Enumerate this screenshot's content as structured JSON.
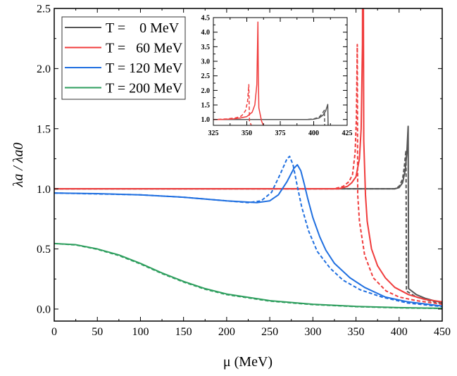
{
  "chart_data": {
    "type": "line",
    "xlabel": "μ (MeV)",
    "ylabel": "λa / λa0",
    "xlim": [
      0,
      450
    ],
    "ylim": [
      -0.1,
      2.5
    ],
    "xticks": [
      "0",
      "50",
      "100",
      "150",
      "200",
      "250",
      "300",
      "350",
      "400",
      "450"
    ],
    "yticks": [
      "0.0",
      "0.5",
      "1.0",
      "1.5",
      "2.0",
      "2.5"
    ],
    "legend": {
      "placement": "top-left",
      "entries": [
        "T =    0 MeV",
        "T =   60 MeV",
        "T = 120 MeV",
        "T = 200 MeV"
      ]
    },
    "series": [
      {
        "name": "T = 0 MeV",
        "color": "#555555",
        "style": "solid",
        "points": [
          [
            0,
            1
          ],
          [
            395,
            1
          ],
          [
            400,
            1.01
          ],
          [
            404,
            1.05
          ],
          [
            407,
            1.15
          ],
          [
            409,
            1.3
          ],
          [
            410.5,
            1.52
          ],
          [
            411,
            0.17
          ],
          [
            420,
            0.12
          ],
          [
            430,
            0.09
          ],
          [
            440,
            0.07
          ],
          [
            450,
            0.055
          ]
        ]
      },
      {
        "name": "T = 0 MeV",
        "color": "#555555",
        "style": "dashed",
        "points": [
          [
            0,
            1
          ],
          [
            395,
            1
          ],
          [
            400,
            1.02
          ],
          [
            404,
            1.08
          ],
          [
            406,
            1.18
          ],
          [
            408,
            1.32
          ],
          [
            408.5,
            0.15
          ],
          [
            420,
            0.1
          ],
          [
            435,
            0.07
          ],
          [
            450,
            0.045
          ]
        ]
      },
      {
        "name": "T = 60 MeV",
        "color": "#f03c3c",
        "style": "solid",
        "points": [
          [
            0,
            1
          ],
          [
            330,
            1
          ],
          [
            340,
            1.02
          ],
          [
            345,
            1.05
          ],
          [
            350,
            1.1
          ],
          [
            354,
            1.25
          ],
          [
            356,
            1.5
          ],
          [
            357.5,
            2.2
          ],
          [
            358.3,
            4.35
          ],
          [
            358.6,
            2.5
          ],
          [
            359,
            1.4
          ],
          [
            361,
            0.95
          ],
          [
            363,
            0.73
          ],
          [
            368,
            0.5
          ],
          [
            375,
            0.36
          ],
          [
            384,
            0.26
          ],
          [
            395,
            0.18
          ],
          [
            411,
            0.12
          ],
          [
            430,
            0.08
          ],
          [
            450,
            0.06
          ]
        ]
      },
      {
        "name": "T = 60 MeV",
        "color": "#f03c3c",
        "style": "dashed",
        "points": [
          [
            0,
            1
          ],
          [
            325,
            1
          ],
          [
            335,
            1.02
          ],
          [
            342,
            1.06
          ],
          [
            346,
            1.12
          ],
          [
            349,
            1.3
          ],
          [
            350.5,
            1.6
          ],
          [
            351.5,
            2.2
          ],
          [
            352,
            0.95
          ],
          [
            354,
            0.73
          ],
          [
            360,
            0.45
          ],
          [
            370,
            0.26
          ],
          [
            385,
            0.15
          ],
          [
            400,
            0.1
          ],
          [
            420,
            0.07
          ],
          [
            450,
            0.04
          ]
        ]
      },
      {
        "name": "T = 120 MeV",
        "color": "#1f6fe0",
        "style": "solid",
        "points": [
          [
            0,
            0.965
          ],
          [
            50,
            0.96
          ],
          [
            100,
            0.95
          ],
          [
            150,
            0.93
          ],
          [
            200,
            0.9
          ],
          [
            235,
            0.885
          ],
          [
            250,
            0.9
          ],
          [
            260,
            0.95
          ],
          [
            270,
            1.06
          ],
          [
            278,
            1.17
          ],
          [
            282,
            1.2
          ],
          [
            286,
            1.15
          ],
          [
            290,
            1.04
          ],
          [
            294,
            0.92
          ],
          [
            300,
            0.76
          ],
          [
            308,
            0.6
          ],
          [
            315,
            0.49
          ],
          [
            325,
            0.38
          ],
          [
            343,
            0.26
          ],
          [
            360,
            0.18
          ],
          [
            384,
            0.1
          ],
          [
            410,
            0.06
          ],
          [
            450,
            0.025
          ]
        ]
      },
      {
        "name": "T = 120 MeV",
        "color": "#1f6fe0",
        "style": "dashed",
        "points": [
          [
            0,
            0.965
          ],
          [
            100,
            0.95
          ],
          [
            150,
            0.93
          ],
          [
            200,
            0.9
          ],
          [
            225,
            0.885
          ],
          [
            240,
            0.9
          ],
          [
            252,
            0.97
          ],
          [
            262,
            1.12
          ],
          [
            270,
            1.25
          ],
          [
            273,
            1.27
          ],
          [
            277,
            1.2
          ],
          [
            282,
            1.02
          ],
          [
            287,
            0.85
          ],
          [
            295,
            0.65
          ],
          [
            305,
            0.48
          ],
          [
            320,
            0.34
          ],
          [
            335,
            0.24
          ],
          [
            355,
            0.16
          ],
          [
            380,
            0.1
          ],
          [
            410,
            0.05
          ],
          [
            450,
            0.02
          ]
        ]
      },
      {
        "name": "T = 200 MeV",
        "color": "#2e9e5e",
        "style": "solid",
        "points": [
          [
            0,
            0.545
          ],
          [
            25,
            0.535
          ],
          [
            50,
            0.5
          ],
          [
            75,
            0.45
          ],
          [
            100,
            0.38
          ],
          [
            125,
            0.3
          ],
          [
            150,
            0.23
          ],
          [
            175,
            0.17
          ],
          [
            200,
            0.125
          ],
          [
            250,
            0.07
          ],
          [
            300,
            0.04
          ],
          [
            350,
            0.022
          ],
          [
            400,
            0.012
          ],
          [
            450,
            0.006
          ]
        ]
      },
      {
        "name": "T = 200 MeV",
        "color": "#2e9e5e",
        "style": "dashed",
        "points": [
          [
            0,
            0.545
          ],
          [
            25,
            0.533
          ],
          [
            50,
            0.497
          ],
          [
            75,
            0.445
          ],
          [
            100,
            0.375
          ],
          [
            125,
            0.295
          ],
          [
            150,
            0.225
          ],
          [
            175,
            0.165
          ],
          [
            200,
            0.12
          ],
          [
            250,
            0.066
          ],
          [
            300,
            0.037
          ],
          [
            350,
            0.02
          ],
          [
            400,
            0.01
          ],
          [
            450,
            0.005
          ]
        ]
      }
    ],
    "inset": {
      "xlim": [
        325,
        425
      ],
      "ylim": [
        0.8,
        4.5
      ],
      "xticks": [
        "325",
        "350",
        "375",
        "400",
        "425"
      ],
      "yticks": [
        "1.0",
        "1.5",
        "2.0",
        "2.5",
        "3.0",
        "3.5",
        "4.0",
        "4.5"
      ],
      "series_shown": [
        "T = 0 MeV",
        "T = 60 MeV"
      ]
    }
  }
}
